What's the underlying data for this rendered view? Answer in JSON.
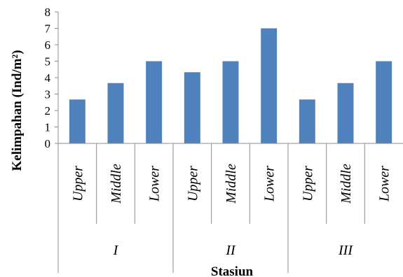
{
  "chart_data": {
    "type": "bar",
    "ylabel": "Kelimpahan (Ind/m²)",
    "xlabel": "Stasiun",
    "ylim": [
      0,
      8
    ],
    "yticks": [
      "0",
      "1",
      "2",
      "3",
      "4",
      "5",
      "6",
      "7",
      "8"
    ],
    "groups": [
      {
        "label": "I",
        "categories": [
          "Upper",
          "Middle",
          "Lower"
        ],
        "values": [
          2.67,
          3.67,
          5
        ]
      },
      {
        "label": "II",
        "categories": [
          "Upper",
          "Middle",
          "Lower"
        ],
        "values": [
          4.33,
          5,
          7
        ]
      },
      {
        "label": "III",
        "categories": [
          "Upper",
          "Middle",
          "Lower"
        ],
        "values": [
          2.67,
          3.67,
          5
        ]
      }
    ],
    "bar_color": "#4f81bd",
    "grid": false,
    "legend": "none"
  }
}
